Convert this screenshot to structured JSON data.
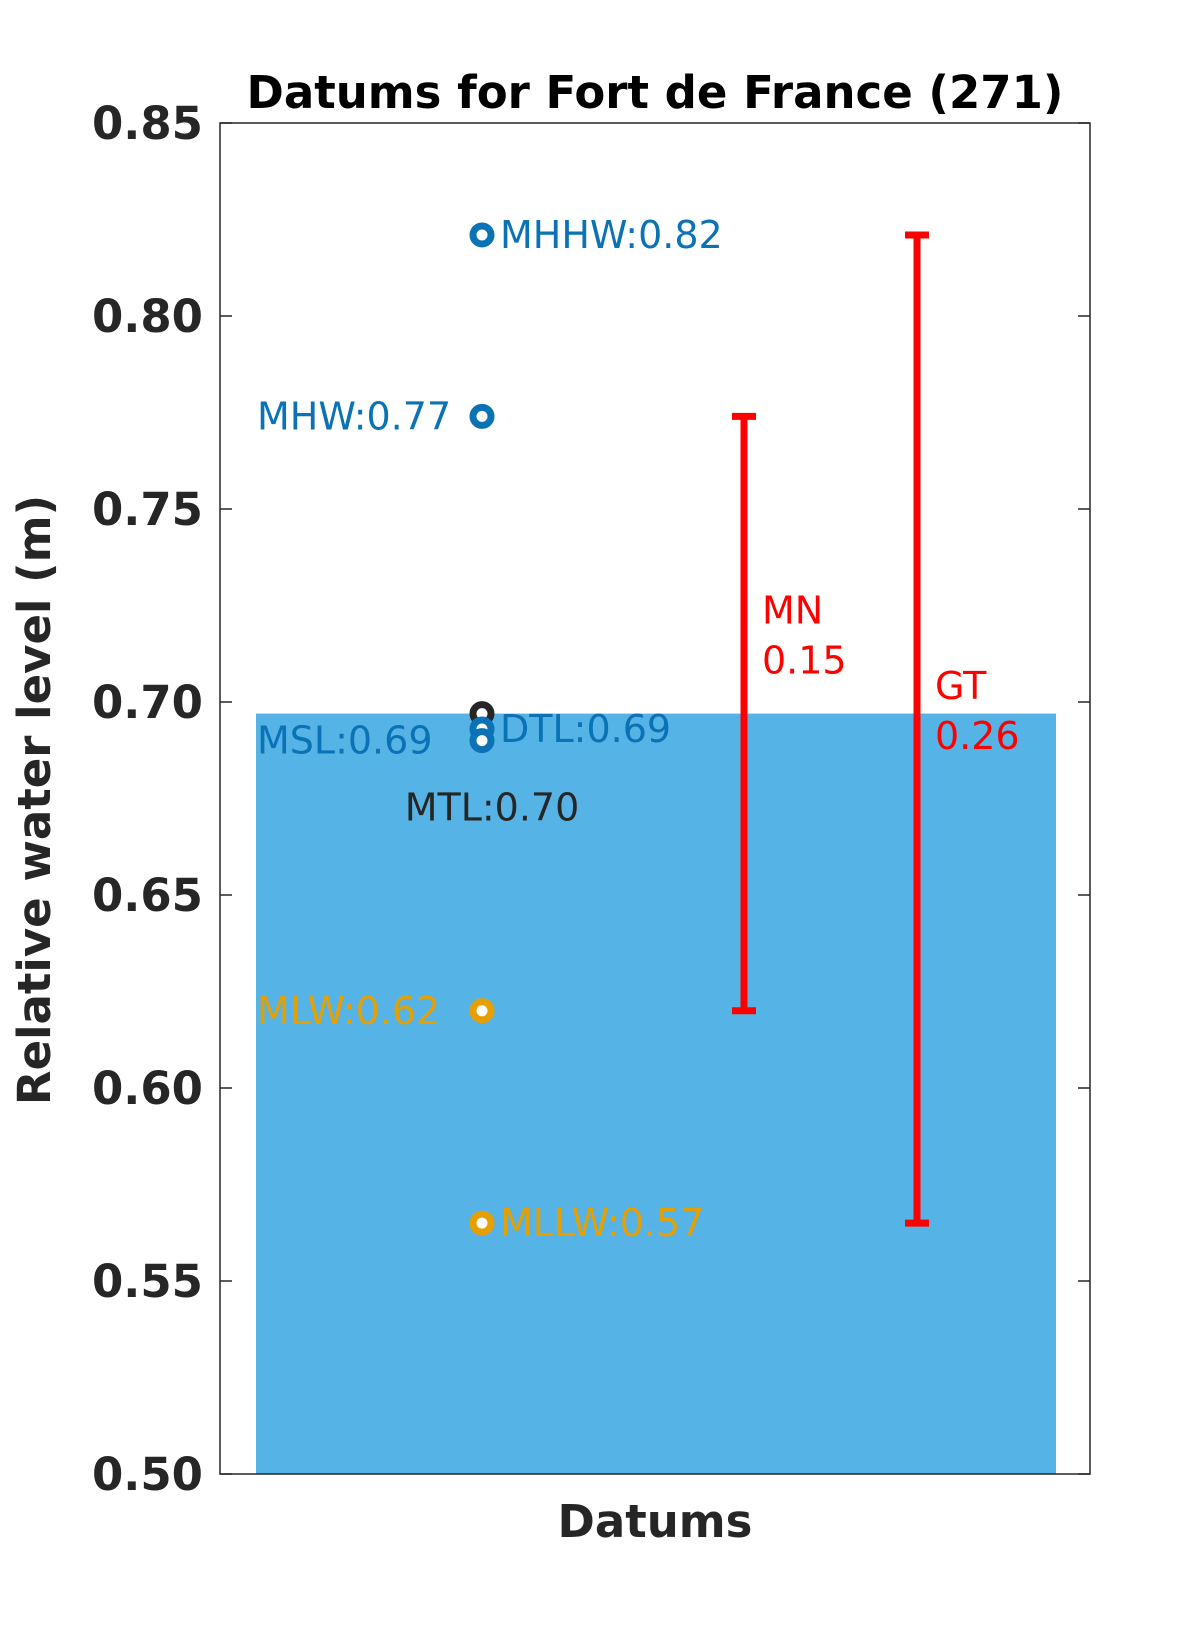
{
  "chart_data": {
    "type": "bar",
    "title": "Datums for Fort de France (271)",
    "xlabel": "Datums",
    "ylabel": "Relative water level (m)",
    "ylim": [
      0.5,
      0.85
    ],
    "yticks": [
      0.5,
      0.55,
      0.6,
      0.65,
      0.7,
      0.75,
      0.8,
      0.85
    ],
    "ytick_labels": [
      "0.50",
      "0.55",
      "0.60",
      "0.65",
      "0.70",
      "0.75",
      "0.80",
      "0.85"
    ],
    "bar": {
      "value": 0.697,
      "color": "#56b3e6"
    },
    "points": [
      {
        "name": "MHHW",
        "value": 0.821,
        "label": "MHHW:0.82",
        "color": "#0a72b5",
        "label_side": "right"
      },
      {
        "name": "MHW",
        "value": 0.774,
        "label": "MHW:0.77",
        "color": "#0a72b5",
        "label_side": "left"
      },
      {
        "name": "MTL",
        "value": 0.697,
        "label": "MTL:0.70",
        "color": "#262626",
        "label_side": "below"
      },
      {
        "name": "DTL",
        "value": 0.693,
        "label": "DTL:0.69",
        "color": "#0a72b5",
        "label_side": "right"
      },
      {
        "name": "MSL",
        "value": 0.69,
        "label": "MSL:0.69",
        "color": "#0a72b5",
        "label_side": "left"
      },
      {
        "name": "MLW",
        "value": 0.62,
        "label": "MLW:0.62",
        "color": "#e69f00",
        "label_side": "left"
      },
      {
        "name": "MLLW",
        "value": 0.565,
        "label": "MLLW:0.57",
        "color": "#e69f00",
        "label_side": "right"
      }
    ],
    "ranges": [
      {
        "name": "MN",
        "low": 0.62,
        "high": 0.774,
        "value_label": "0.15",
        "color": "#ff0000"
      },
      {
        "name": "GT",
        "low": 0.565,
        "high": 0.821,
        "value_label": "0.26",
        "color": "#ff0000"
      }
    ],
    "grid": false
  }
}
